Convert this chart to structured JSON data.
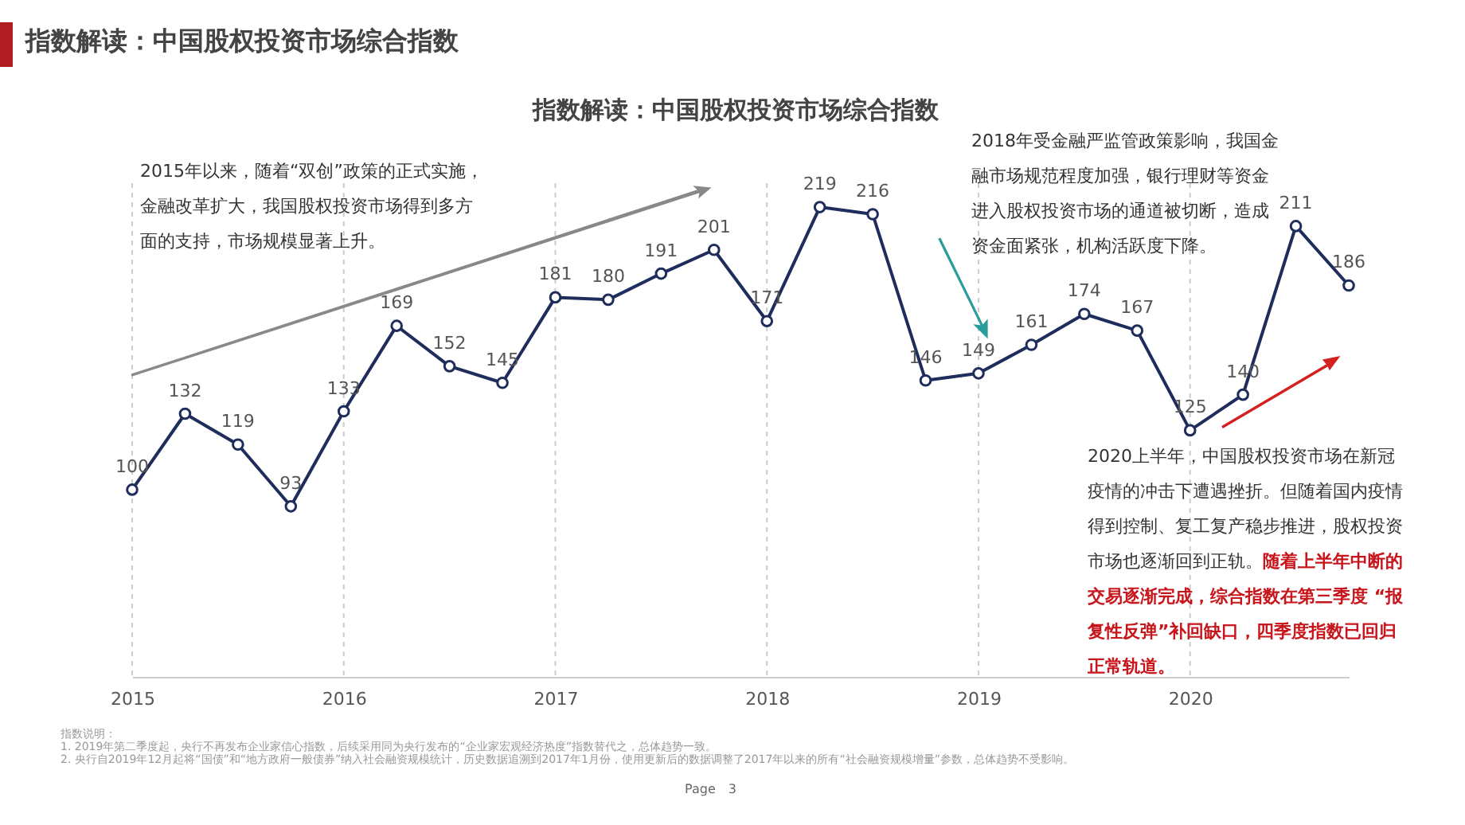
{
  "chart_data": {
    "type": "line",
    "title": "指数解读：中国股权投资市场综合指数",
    "categories": [
      "2015",
      null,
      null,
      null,
      "2016",
      null,
      null,
      null,
      "2017",
      null,
      null,
      null,
      "2018",
      null,
      null,
      null,
      "2019",
      null,
      null,
      null,
      "2020",
      null,
      null,
      null
    ],
    "series": [
      {
        "color": "#1f2d5c",
        "values": [
          100,
          132,
          119,
          93,
          133,
          169,
          152,
          145,
          181,
          180,
          191,
          201,
          171,
          219,
          216,
          146,
          149,
          161,
          174,
          167,
          125,
          140,
          211,
          186
        ]
      }
    ],
    "data_labels": true,
    "marker": "circle",
    "line_style": "solid",
    "grid": "x",
    "annotations": [
      "指数解读：中国股权投资市场综合指数",
      "2015年以来，随着“双创”政策的正式实施，金融改革扩大，我国股权投资市场得到多方面的支持，市场规模显著上升。",
      "2018年受金融严监管政策影响，我国金融市场规范程度加强，银行理财等资金进入股权投资市场的通道被切断，造成资金面紧张，机构活跃度下降。",
      "2020上半年，中国股权投资市场在新冠疫情的冲击下遭遇挫折。但随着国内疫情得到控制、复工复产稳步推进，股权投资市场也逐渐回到正轨。",
      "随着上半年中断的交易逐渐完成，综合指数在第三季度 “报复性反弹”补回缺口，四季度指数已回归正常轨道。",
      "指数说明：",
      "1. 2019年第二季度起，央行不再发布企业家信心指数，后续采用同为央行发布的“企业家宏观经济热度”指数替代之，总体趋势一致。",
      "2. 央行自2019年12月起将“国债”和“地方政府一般债券”纳入社会融资规模统计，历史数据追溯到2017年1月份，使用更新后的数据调整了2017年以来的所有“社会融资规模增量”参数，总体趋势不受影响。",
      "Page　3"
    ]
  }
}
